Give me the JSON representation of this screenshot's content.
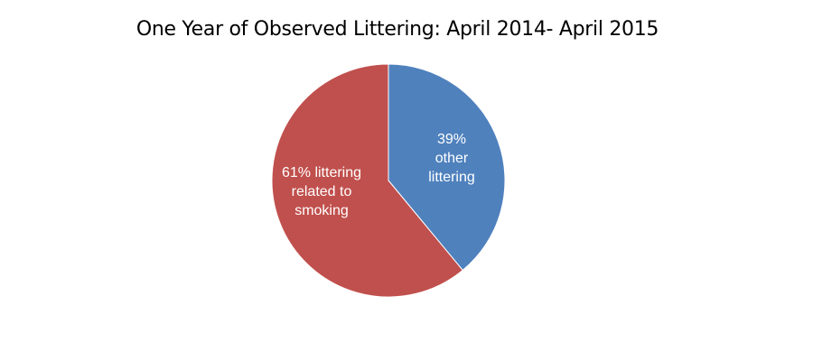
{
  "chart_data": {
    "type": "pie",
    "title": "One Year of Observed Littering: April 2014- April 2015",
    "slices": [
      {
        "name": "other littering",
        "value": 39,
        "color": "#4f81bd",
        "label_lines": [
          "39%",
          "other",
          "littering"
        ]
      },
      {
        "name": "littering related to smoking",
        "value": 61,
        "color": "#c0504d",
        "label_lines": [
          "61% littering",
          "related to",
          "smoking"
        ]
      }
    ],
    "start_angle": "12 o'clock",
    "direction": "clockwise",
    "legend": "none"
  }
}
